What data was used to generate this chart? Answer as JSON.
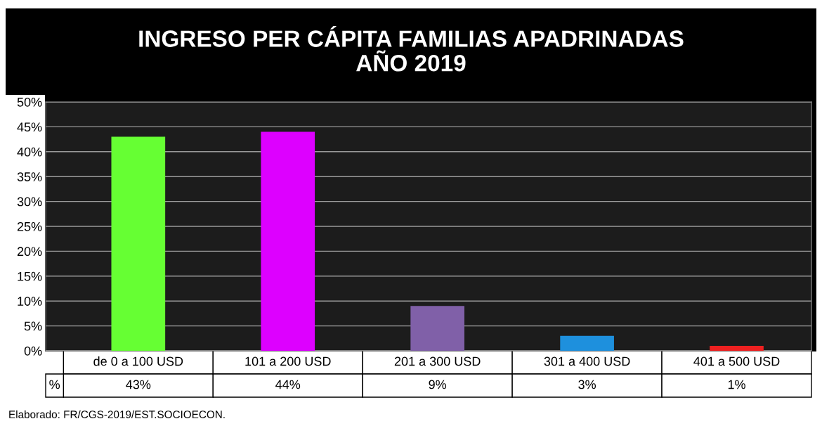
{
  "chart_data": {
    "type": "bar",
    "title": "INGRESO PER CÁPITA FAMILIAS APADRINADAS\nAÑO 2019",
    "categories": [
      "de 0 a 100 USD",
      "101 a 200 USD",
      "201 a 300 USD",
      "301 a 400 USD",
      "401 a 500 USD"
    ],
    "values": [
      43,
      44,
      9,
      3,
      1
    ],
    "value_labels": [
      "43%",
      "44%",
      "9%",
      "3%",
      "1%"
    ],
    "colors": [
      "#66ff33",
      "#dd00ff",
      "#8060a8",
      "#1e90dd",
      "#ee2020"
    ],
    "ylim": [
      0,
      50
    ],
    "yticks": [
      {
        "value": 0,
        "label": "0%"
      },
      {
        "value": 5,
        "label": "5%"
      },
      {
        "value": 10,
        "label": "10%"
      },
      {
        "value": 15,
        "label": "15%"
      },
      {
        "value": 20,
        "label": "20%"
      },
      {
        "value": 25,
        "label": "25%"
      },
      {
        "value": 30,
        "label": "30%"
      },
      {
        "value": 35,
        "label": "35%"
      },
      {
        "value": 40,
        "label": "40%"
      },
      {
        "value": 45,
        "label": "45%"
      },
      {
        "value": 50,
        "label": "50%"
      }
    ],
    "grid": "y",
    "annotations": [
      "%",
      "Elaborado: FR/CGS-2019/EST.SOCIOECON."
    ]
  }
}
